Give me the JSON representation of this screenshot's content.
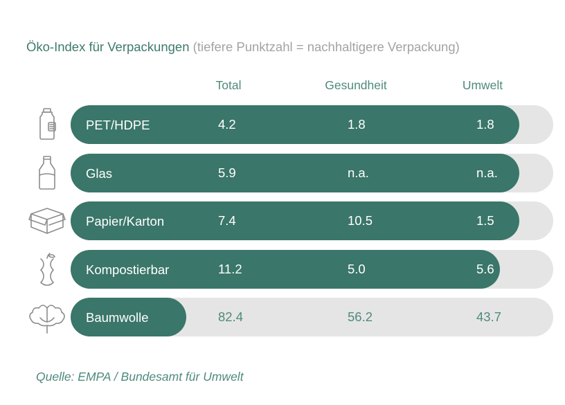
{
  "title": {
    "main": "Öko-Index für Verpackungen",
    "sub": "(tiefere Punktzahl = nachhaltigere Verpackung)"
  },
  "columns": [
    "Total",
    "Gesundheit",
    "Umwelt"
  ],
  "rows": [
    {
      "label": "PET/HDPE",
      "total": "4.2",
      "gesundheit": "1.8",
      "umwelt": "1.8",
      "icon": "bottle-icon",
      "bar_fraction": 0.93
    },
    {
      "label": "Glas",
      "total": "5.9",
      "gesundheit": "n.a.",
      "umwelt": "n.a.",
      "icon": "milk-bottle-icon",
      "bar_fraction": 0.93
    },
    {
      "label": "Papier/Karton",
      "total": "7.4",
      "gesundheit": "10.5",
      "umwelt": "1.5",
      "icon": "cardboard-box-icon",
      "bar_fraction": 0.93
    },
    {
      "label": "Kompostierbar",
      "total": "11.2",
      "gesundheit": "5.0",
      "umwelt": "5.6",
      "icon": "apple-core-icon",
      "bar_fraction": 0.89
    },
    {
      "label": "Baumwolle",
      "total": "82.4",
      "gesundheit": "56.2",
      "umwelt": "43.7",
      "icon": "cotton-icon",
      "bar_fraction": 0.24
    }
  ],
  "source": "Quelle: EMPA / Bundesamt für Umwelt",
  "colors": {
    "fill": "#3a7669",
    "track": "#e5e5e5",
    "title": "#3d7a6c",
    "subtitle": "#a3a3a3",
    "dark_text": "#4f8a7c",
    "icon": "#8c8c8c"
  },
  "chart_data": {
    "type": "bar",
    "title": "Öko-Index für Verpackungen",
    "subtitle": "(tiefere Punktzahl = nachhaltigere Verpackung)",
    "categories": [
      "PET/HDPE",
      "Glas",
      "Papier/Karton",
      "Kompostierbar",
      "Baumwolle"
    ],
    "series": [
      {
        "name": "Total",
        "values": [
          4.2,
          5.9,
          7.4,
          11.2,
          82.4
        ]
      },
      {
        "name": "Gesundheit",
        "values": [
          1.8,
          null,
          10.5,
          5.0,
          56.2
        ]
      },
      {
        "name": "Umwelt",
        "values": [
          1.8,
          null,
          1.5,
          5.6,
          43.7
        ]
      }
    ],
    "bar_level_fraction": [
      0.93,
      0.93,
      0.93,
      0.89,
      0.24
    ],
    "orientation": "horizontal",
    "grid": false
  }
}
